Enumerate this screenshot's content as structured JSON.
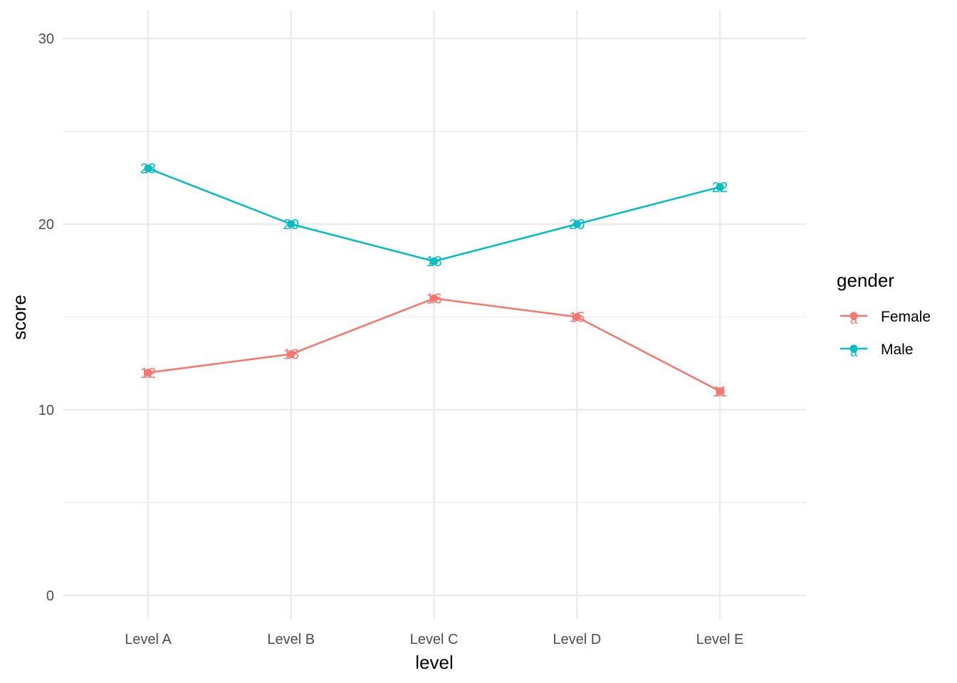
{
  "chart_data": {
    "type": "line",
    "categories": [
      "Level A",
      "Level B",
      "Level C",
      "Level D",
      "Level E"
    ],
    "series": [
      {
        "name": "Female",
        "values": [
          12,
          13,
          16,
          15,
          11
        ],
        "color": "#F8766D"
      },
      {
        "name": "Male",
        "values": [
          23,
          20,
          18,
          20,
          22
        ],
        "color": "#00BFC4"
      }
    ],
    "xlabel": "level",
    "ylabel": "score",
    "ylim": [
      0,
      30
    ],
    "yticks": [
      0,
      10,
      20,
      30
    ],
    "grid": true,
    "legend": {
      "title": "gender",
      "placement": "right",
      "key_glyph": "a"
    },
    "data_labels": true
  }
}
